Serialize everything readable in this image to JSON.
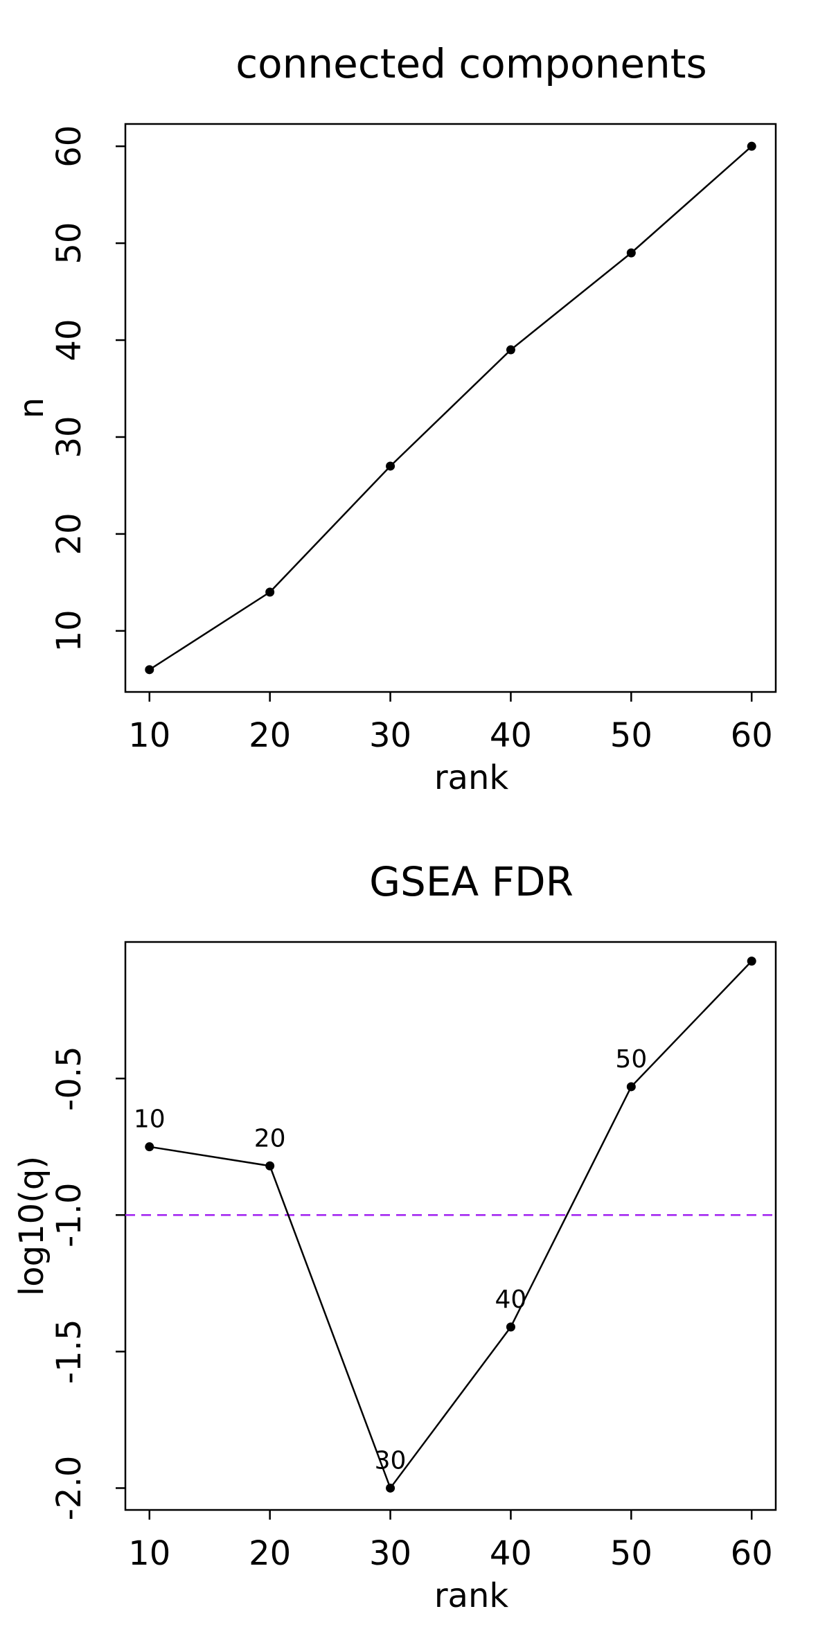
{
  "chart_data": [
    {
      "type": "line",
      "title": "connected components",
      "xlabel": "rank",
      "ylabel": "n",
      "x": [
        10,
        20,
        30,
        40,
        50,
        60
      ],
      "series": [
        {
          "values": [
            6,
            14,
            27,
            39,
            49,
            60
          ]
        }
      ],
      "xticks": [
        "10",
        "20",
        "30",
        "40",
        "50",
        "60"
      ],
      "yticks": [
        "10",
        "20",
        "30",
        "40",
        "50",
        "60"
      ],
      "xlim": [
        8,
        62
      ],
      "ylim": [
        3.7,
        62.3
      ],
      "grid": false,
      "marker": "filled-circle",
      "line_color": "#000000"
    },
    {
      "type": "line",
      "title": "GSEA FDR",
      "xlabel": "rank",
      "ylabel": "log10(q)",
      "x": [
        10,
        20,
        30,
        40,
        50,
        60
      ],
      "series": [
        {
          "values": [
            -0.75,
            -0.82,
            -2.0,
            -1.41,
            -0.53,
            -0.07
          ]
        }
      ],
      "point_labels": [
        "10",
        "20",
        "30",
        "40",
        "50",
        ""
      ],
      "xticks": [
        "10",
        "20",
        "30",
        "40",
        "50",
        "60"
      ],
      "yticks": [
        "-2.0",
        "-1.5",
        "-1.0",
        "-0.5"
      ],
      "ytick_values": [
        -2.0,
        -1.5,
        -1.0,
        -0.5
      ],
      "xlim": [
        8,
        62
      ],
      "ylim": [
        -2.08,
        0.0
      ],
      "reference_line": {
        "y": -1.0,
        "style": "dashed",
        "color": "#a020f0"
      },
      "grid": false,
      "marker": "filled-circle",
      "line_color": "#000000"
    }
  ]
}
